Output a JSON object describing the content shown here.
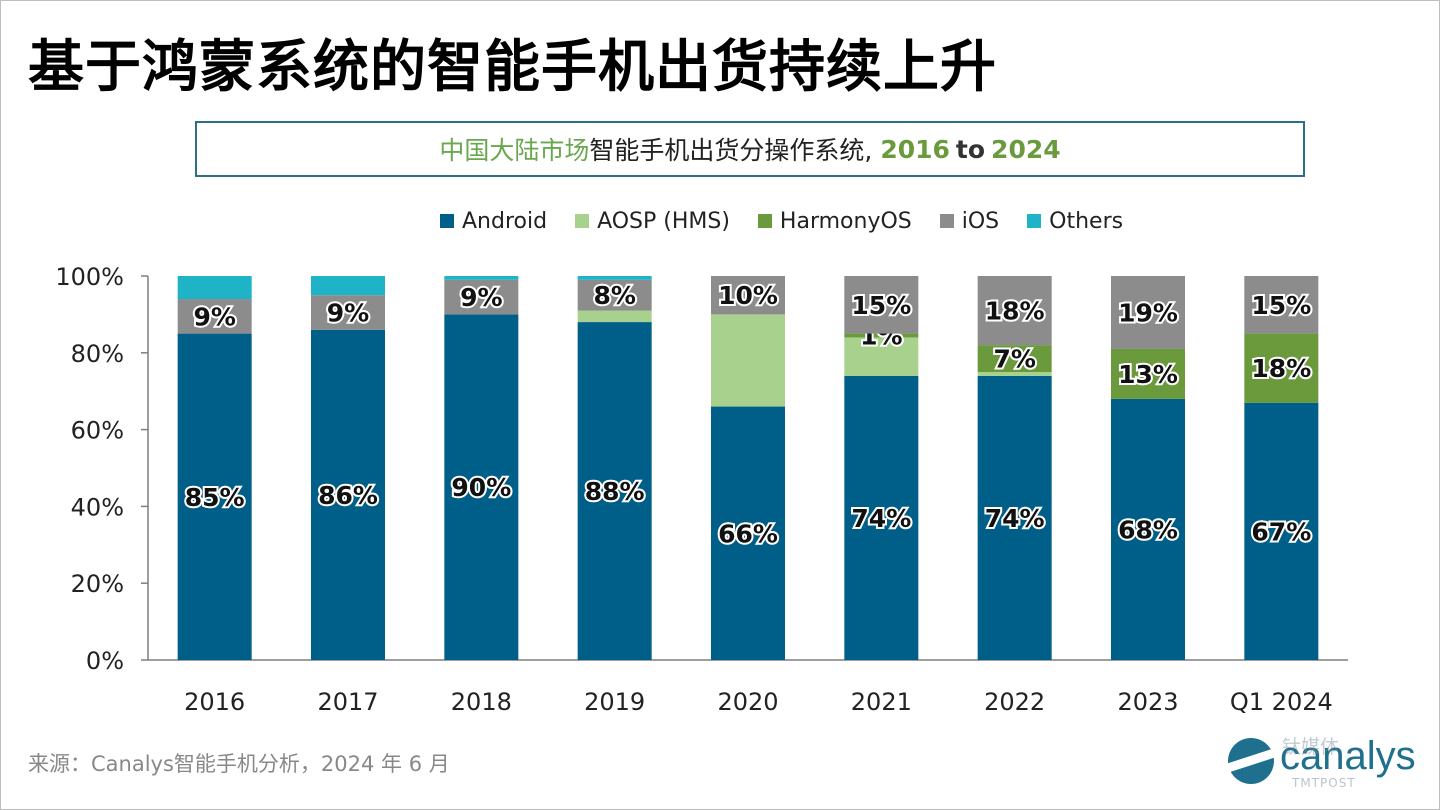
{
  "title": "基于鸿蒙系统的智能手机出货持续上升",
  "subtitle": {
    "region": "中国大陆市场",
    "text": " 智能手机出货分操作系统,",
    "year_start": "2016",
    "connector": "to",
    "year_end": "2024"
  },
  "source_note": "来源：Canalys智能手机分析，2024 年 6 月",
  "logo": {
    "brand": "canalys",
    "watermark": "钛媒体",
    "watermark_sub": "TMTPOST"
  },
  "colors": {
    "Android": "#005f89",
    "AOSP (HMS)": "#a8d18d",
    "HarmonyOS": "#6a9a3c",
    "iOS": "#8c8c8c",
    "Others": "#1fb3c8"
  },
  "chart_data": {
    "type": "bar",
    "stacked": true,
    "title": "中国大陆市场 智能手机出货分操作系统, 2016 to 2024",
    "xlabel": "",
    "ylabel": "",
    "ylim": [
      0,
      100
    ],
    "yticks": [
      "0%",
      "20%",
      "40%",
      "60%",
      "80%",
      "100%"
    ],
    "legend_position": "top",
    "categories": [
      "2016",
      "2017",
      "2018",
      "2019",
      "2020",
      "2021",
      "2022",
      "2023",
      "Q1 2024"
    ],
    "series": [
      {
        "name": "Android",
        "values": [
          85,
          86,
          90,
          88,
          66,
          74,
          74,
          68,
          67
        ],
        "labels": [
          "85%",
          "86%",
          "90%",
          "88%",
          "66%",
          "74%",
          "74%",
          "68%",
          "67%"
        ]
      },
      {
        "name": "AOSP (HMS)",
        "values": [
          0,
          0,
          0,
          3,
          24,
          10,
          1,
          0,
          0
        ],
        "labels": [
          "",
          "",
          "",
          "",
          "",
          "",
          "",
          "",
          ""
        ]
      },
      {
        "name": "HarmonyOS",
        "values": [
          0,
          0,
          0,
          0,
          0,
          1,
          7,
          13,
          18
        ],
        "labels": [
          "",
          "",
          "",
          "",
          "",
          "1%",
          "7%",
          "13%",
          "18%"
        ]
      },
      {
        "name": "iOS",
        "values": [
          9,
          9,
          9,
          8,
          10,
          15,
          18,
          19,
          15
        ],
        "labels": [
          "9%",
          "9%",
          "9%",
          "8%",
          "10%",
          "15%",
          "18%",
          "19%",
          "15%"
        ]
      },
      {
        "name": "Others",
        "values": [
          6,
          5,
          1,
          1,
          0,
          0,
          0,
          0,
          0
        ],
        "labels": [
          "",
          "",
          "",
          "",
          "",
          "",
          "",
          "",
          ""
        ]
      }
    ]
  }
}
